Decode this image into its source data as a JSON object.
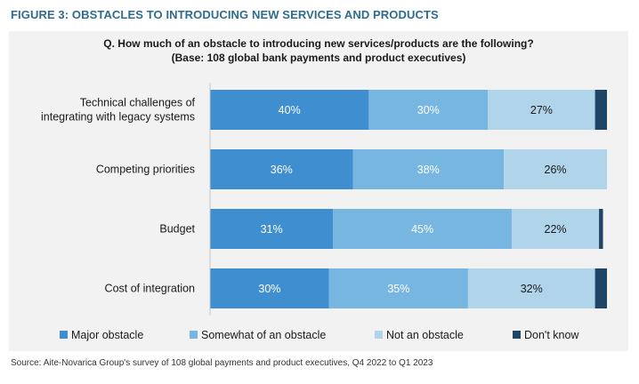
{
  "figure_title": "FIGURE 3: OBSTACLES TO INTRODUCING NEW SERVICES AND PRODUCTS",
  "source_note": "Source: Aite-Novarica Group's survey of 108 global payments and product executives, Q4 2022 to Q1 2023",
  "chart_data": {
    "type": "bar",
    "orientation": "horizontal",
    "stacked": true,
    "title_lines": [
      "Q. How much of an obstacle to introducing new services/products are the following?",
      "(Base: 108 global bank payments and product executives)"
    ],
    "categories": [
      [
        "Technical challenges of",
        "integrating with legacy systems"
      ],
      [
        "Competing priorities"
      ],
      [
        "Budget"
      ],
      [
        "Cost of integration"
      ]
    ],
    "series": [
      {
        "name": "Major obstacle",
        "values": [
          40,
          36,
          31,
          30
        ],
        "labels": [
          "40%",
          "36%",
          "31%",
          "30%"
        ],
        "color": "#3f8ed0",
        "label_color": "#ffffff"
      },
      {
        "name": "Somewhat of an obstacle",
        "values": [
          30,
          38,
          45,
          35
        ],
        "labels": [
          "30%",
          "38%",
          "45%",
          "35%"
        ],
        "color": "#77b6e1",
        "label_color": "#ffffff"
      },
      {
        "name": "Not an obstacle",
        "values": [
          27,
          26,
          22,
          32
        ],
        "labels": [
          "27%",
          "26%",
          "22%",
          "32%"
        ],
        "color": "#b0d4ea",
        "label_color": "#1a1a1a"
      },
      {
        "name": "Don't know",
        "values": [
          3,
          0,
          1,
          3
        ],
        "labels": [
          "",
          "",
          "",
          ""
        ],
        "color": "#1e4466",
        "label_color": "#ffffff"
      }
    ],
    "xlim": [
      0,
      100
    ],
    "grid": false,
    "legend_position": "bottom"
  }
}
